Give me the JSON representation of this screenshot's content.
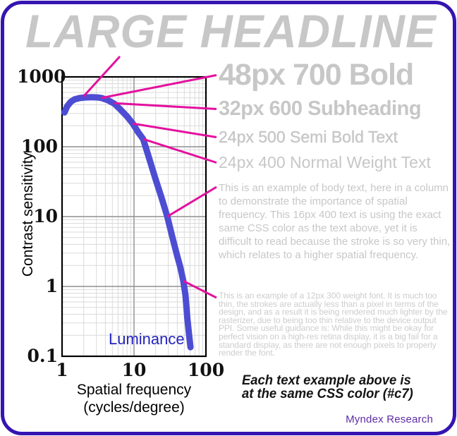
{
  "headline": "LARGE HEADLINE",
  "text_samples": [
    {
      "id": "sample-48",
      "label": "48px 700 Bold"
    },
    {
      "id": "sample-32",
      "label": "32px 600 Subheading"
    },
    {
      "id": "sample-24b",
      "label": "24px 500 Semi Bold Text"
    },
    {
      "id": "sample-24",
      "label": "24px 400 Normal Weight Text"
    },
    {
      "id": "sample-body16",
      "label": "This is an example of body text, here in a column to demonstrate the importance of spatial frequency. This 16px 400 text is using the exact same CSS color as the text above, yet it is difficult to read because the stroke is so very thin, which relates to a higher spatial frequency."
    },
    {
      "id": "sample-body12",
      "label": "This is an example of a 12px 300 weight font. It is much too thin, the strokes are actually less than a pixel in terms of the design, and as a result it is being rendered much lighter by the rasterizer, due to being too thin relative to the device output PPI. Some useful guidance is: While this might be okay for perfect vision on a high-res retina display, it is a big fail for a standard display, as there are not enough pixels to properly render the font."
    }
  ],
  "footnote": {
    "line1": "Each text example above is",
    "line2": "at the same CSS color (#c7)"
  },
  "credit": "Myndex Research",
  "colors": {
    "frame_border": "#3514b2",
    "sample_gray": "#c7c7c7",
    "callout_magenta": "#e3119e",
    "curve_blue": "#4d4dd3",
    "luminance_text": "#2424bd",
    "credit_purple": "#5e2ca5",
    "grid_minor": "#dadada",
    "grid_major": "#8f8f8f",
    "plot_border": "#000000"
  },
  "chart_data": {
    "type": "line",
    "title": "",
    "xlabel": "Spatial frequency (cycles/degree)",
    "xlabel_lines": [
      "Spatial frequency",
      "(cycles/degree)"
    ],
    "ylabel": "Contrast sensitivity",
    "x_scale": "log",
    "y_scale": "log",
    "xlim": [
      1,
      100
    ],
    "ylim": [
      0.1,
      1000
    ],
    "x_ticks": [
      "1",
      "10",
      "100"
    ],
    "y_ticks": [
      "1000",
      "100",
      "10",
      "1",
      "0.1"
    ],
    "grid": "log minor + major, on",
    "legend_position": "inside bottom, text label",
    "series": [
      {
        "name": "Luminance",
        "color": "#4d4dd3",
        "points": [
          [
            1.08,
            310
          ],
          [
            1.18,
            380
          ],
          [
            1.32,
            440
          ],
          [
            1.5,
            478
          ],
          [
            1.75,
            498
          ],
          [
            2.1,
            508
          ],
          [
            2.6,
            512
          ],
          [
            3.1,
            508
          ],
          [
            3.6,
            497
          ],
          [
            4.3,
            465
          ],
          [
            5.3,
            415
          ],
          [
            6.5,
            340
          ],
          [
            8,
            272
          ],
          [
            9.6,
            215
          ],
          [
            11.5,
            160
          ],
          [
            13.4,
            129
          ],
          [
            16,
            72
          ],
          [
            20,
            34
          ],
          [
            24,
            19
          ],
          [
            29,
            10
          ],
          [
            35,
            4.6
          ],
          [
            40,
            2.7
          ],
          [
            44,
            1.9
          ],
          [
            48.5,
            1.2
          ],
          [
            52,
            0.75
          ],
          [
            55,
            0.36
          ],
          [
            58,
            0.21
          ],
          [
            61,
            0.135
          ]
        ]
      }
    ],
    "callouts": [
      {
        "target": "headline",
        "curve_point": [
          1.97,
          521
        ],
        "text_anchor": "headline"
      },
      {
        "target": "sample-48",
        "curve_point": [
          3.46,
          498
        ],
        "text_anchor": "center"
      },
      {
        "target": "sample-32",
        "curve_point": [
          5.3,
          420
        ],
        "text_anchor": "center"
      },
      {
        "target": "sample-24b",
        "curve_point": [
          9.56,
          215
        ],
        "text_anchor": "center"
      },
      {
        "target": "sample-24",
        "curve_point": [
          13.4,
          129
        ],
        "text_anchor": "center"
      },
      {
        "target": "sample-body16",
        "curve_point": [
          29,
          10
        ],
        "text_anchor": "first-line"
      },
      {
        "target": "sample-body12",
        "curve_point": [
          48.5,
          1.2
        ],
        "text_anchor": "first-line"
      }
    ]
  }
}
